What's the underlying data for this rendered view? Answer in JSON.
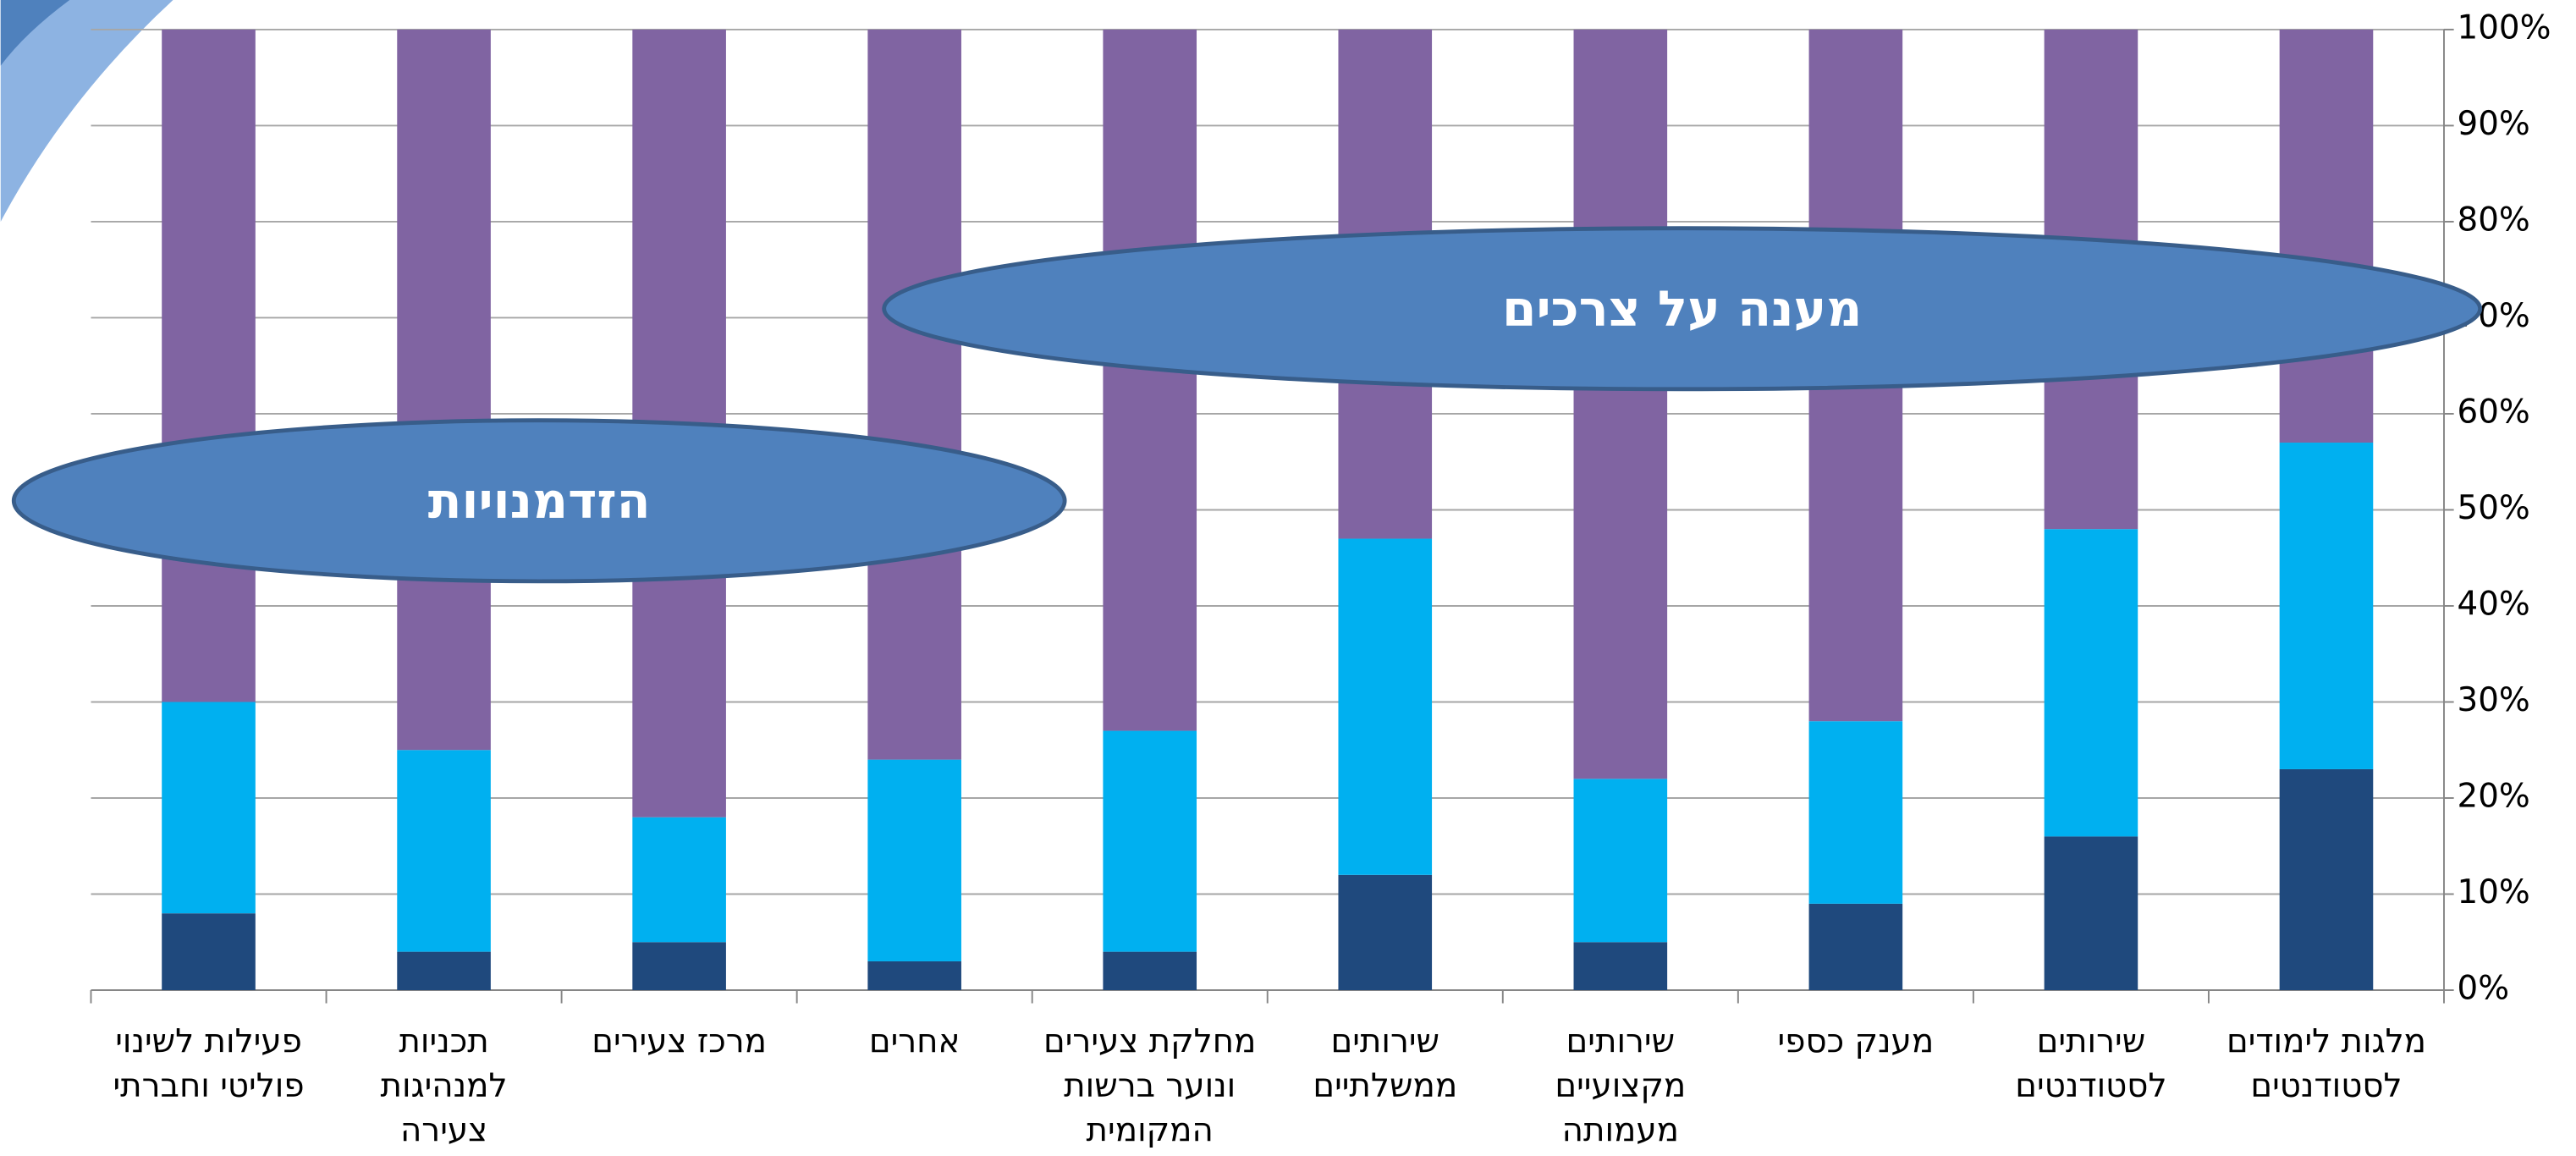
{
  "chart_data": {
    "type": "stacked_bar",
    "categories": [
      "פעילות לשינוי פוליטי וחברתי",
      "תכניות למנהיגות צעירה",
      "מרכז צעירים",
      "אחרים",
      "מחלקת צעירים ונוער ברשות המקומית",
      "שירותים ממשלתיים",
      "שירותים מקצועיים מעמותה",
      "מענק כספי",
      "שירותים לסטודנטים",
      "מלגות לימודים לסטודנטים"
    ],
    "series": [
      {
        "color": "#1f497d",
        "values": [
          8,
          4,
          5,
          3,
          4,
          12,
          5,
          9,
          16,
          23
        ]
      },
      {
        "color": "#00b0f0",
        "values": [
          22,
          21,
          13,
          21,
          23,
          35,
          17,
          19,
          32,
          34
        ]
      },
      {
        "color": "#8064a2",
        "values": [
          70,
          75,
          82,
          76,
          73,
          53,
          78,
          72,
          52,
          43
        ]
      }
    ],
    "ylim": [
      0,
      100
    ],
    "yticks": [
      {
        "value": 0,
        "label": "0%"
      },
      {
        "value": 10,
        "label": "10%"
      },
      {
        "value": 20,
        "label": "20%"
      },
      {
        "value": 30,
        "label": "30%"
      },
      {
        "value": 40,
        "label": "40%"
      },
      {
        "value": 50,
        "label": "50%"
      },
      {
        "value": 60,
        "label": "60%"
      },
      {
        "value": 70,
        "label": "70%"
      },
      {
        "value": 80,
        "label": "80%"
      },
      {
        "value": 90,
        "label": "90%"
      },
      {
        "value": 100,
        "label": "100%"
      }
    ],
    "grid": true,
    "annotations": [
      "הזדמנויות",
      "מענה על צרכים"
    ]
  }
}
